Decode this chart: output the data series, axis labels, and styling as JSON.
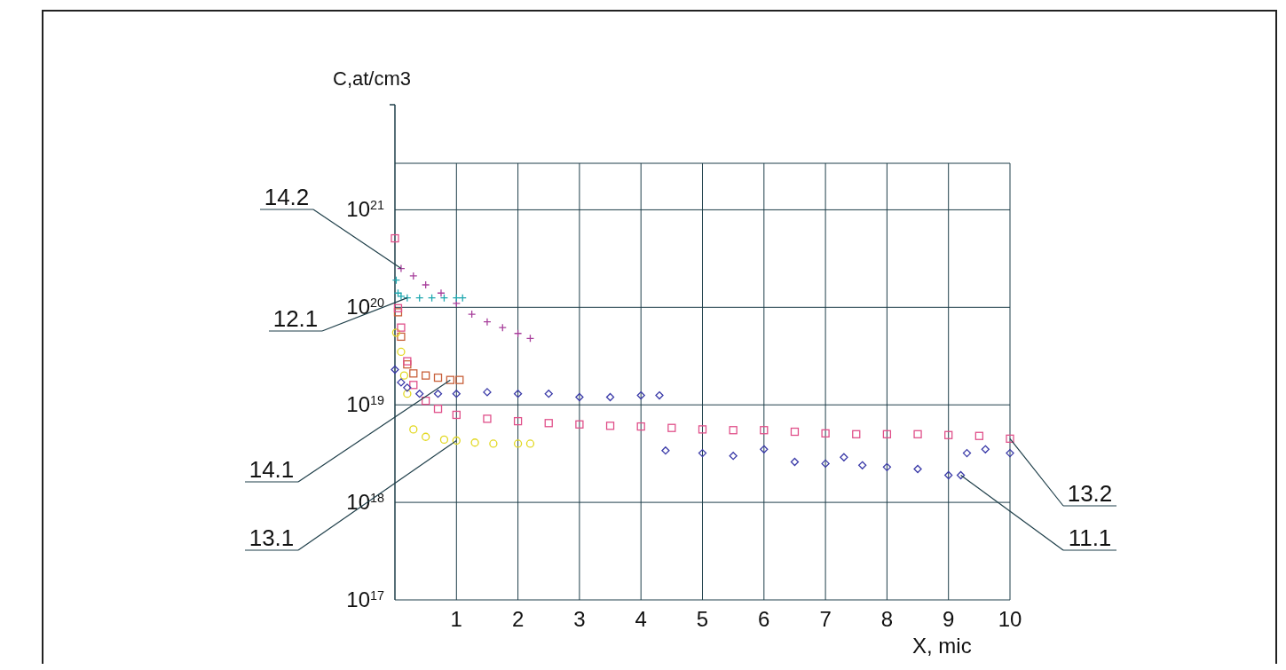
{
  "chart_data": {
    "type": "scatter",
    "xlabel": "X, mic",
    "ylabel": "C,at/cm3",
    "log": "y",
    "grid": true,
    "xlim": [
      0,
      10
    ],
    "xticks": [
      1,
      2,
      3,
      4,
      5,
      6,
      7,
      8,
      9,
      10
    ],
    "ylim": [
      1e+17,
      3e+21
    ],
    "yticks": [
      {
        "value": 1e+17,
        "label": "10$^{17}$"
      },
      {
        "value": 1e+18,
        "label": "10$^{18}$"
      },
      {
        "value": 1e+19,
        "label": "10$^{19}$"
      },
      {
        "value": 1e+20,
        "label": "10$^{20}$"
      },
      {
        "value": 1e+21,
        "label": "10$^{21}$"
      }
    ],
    "series": [
      {
        "name": "14.2",
        "color": "#a8409c",
        "marker": "cross",
        "x": [
          0.1,
          0.3,
          0.5,
          0.75,
          1.0,
          1.25,
          1.5,
          1.75,
          2.0,
          2.2
        ],
        "values": [
          2.5e+20,
          2.1e+20,
          1.7e+20,
          1.4e+20,
          1.1e+20,
          8.5e+19,
          7.1e+19,
          6.2e+19,
          5.4e+19,
          4.8e+19
        ]
      },
      {
        "name": "12.1",
        "color": "#20a8b0",
        "marker": "cross",
        "x": [
          0.02,
          0.05,
          0.1,
          0.2,
          0.4,
          0.6,
          0.8,
          1.0,
          1.1
        ],
        "values": [
          1.9e+20,
          1.4e+20,
          1.3e+20,
          1.25e+20,
          1.25e+20,
          1.25e+20,
          1.25e+20,
          1.25e+20,
          1.25e+20
        ]
      },
      {
        "name": "14.1",
        "color": "#c8603a",
        "marker": "square",
        "x": [
          0.05,
          0.1,
          0.2,
          0.3,
          0.5,
          0.7,
          0.9,
          1.05
        ],
        "values": [
          8.9e+19,
          5e+19,
          2.6e+19,
          2.1e+19,
          2e+19,
          1.9e+19,
          1.8e+19,
          1.8e+19
        ]
      },
      {
        "name": "13.1",
        "color": "#e2d820",
        "marker": "circle",
        "x": [
          0.02,
          0.1,
          0.15,
          0.2,
          0.3,
          0.5,
          0.8,
          1.0,
          1.3,
          1.6,
          2.0,
          2.2
        ],
        "values": [
          5.5e+19,
          3.5e+19,
          2e+19,
          1.3e+19,
          5.6e+18,
          4.7e+18,
          4.4e+18,
          4.3e+18,
          4.1e+18,
          4e+18,
          4e+18,
          4e+18
        ]
      },
      {
        "name": "13.2",
        "color": "#e0508a",
        "marker": "square",
        "x": [
          0,
          0.05,
          0.1,
          0.2,
          0.3,
          0.5,
          0.7,
          1,
          1.5,
          2,
          2.5,
          3,
          3.5,
          4,
          4.5,
          5,
          5.5,
          6,
          6.5,
          7,
          7.5,
          8,
          8.5,
          9,
          9.5,
          10
        ],
        "values": [
          5.1e+20,
          9.8e+19,
          6.2e+19,
          2.8e+19,
          1.6e+19,
          1.1e+19,
          9.1e+18,
          7.9e+18,
          7.2e+18,
          6.8e+18,
          6.5e+18,
          6.3e+18,
          6.1e+18,
          6e+18,
          5.8e+18,
          5.6e+18,
          5.5e+18,
          5.5e+18,
          5.3e+18,
          5.1e+18,
          5e+18,
          5e+18,
          5e+18,
          4.9e+18,
          4.8e+18,
          4.5e+18
        ]
      },
      {
        "name": "11.1",
        "color": "#3a3aa8",
        "marker": "diamond",
        "x": [
          0,
          0.1,
          0.2,
          0.4,
          0.7,
          1,
          1.5,
          2,
          2.5,
          3,
          3.5,
          4,
          4.3,
          4.4,
          5,
          5.5,
          6,
          6.5,
          7,
          7.3,
          7.6,
          8,
          8.5,
          9,
          9.2,
          9.3,
          9.6,
          10
        ],
        "values": [
          2.3e+19,
          1.7e+19,
          1.5e+19,
          1.3e+19,
          1.3e+19,
          1.3e+19,
          1.35e+19,
          1.3e+19,
          1.3e+19,
          1.2e+19,
          1.2e+19,
          1.25e+19,
          1.25e+19,
          3.4e+18,
          3.2e+18,
          3e+18,
          3.5e+18,
          2.6e+18,
          2.5e+18,
          2.9e+18,
          2.4e+18,
          2.3e+18,
          2.2e+18,
          1.9e+18,
          1.9e+18,
          3.2e+18,
          3.5e+18,
          3.2e+18
        ]
      }
    ]
  }
}
